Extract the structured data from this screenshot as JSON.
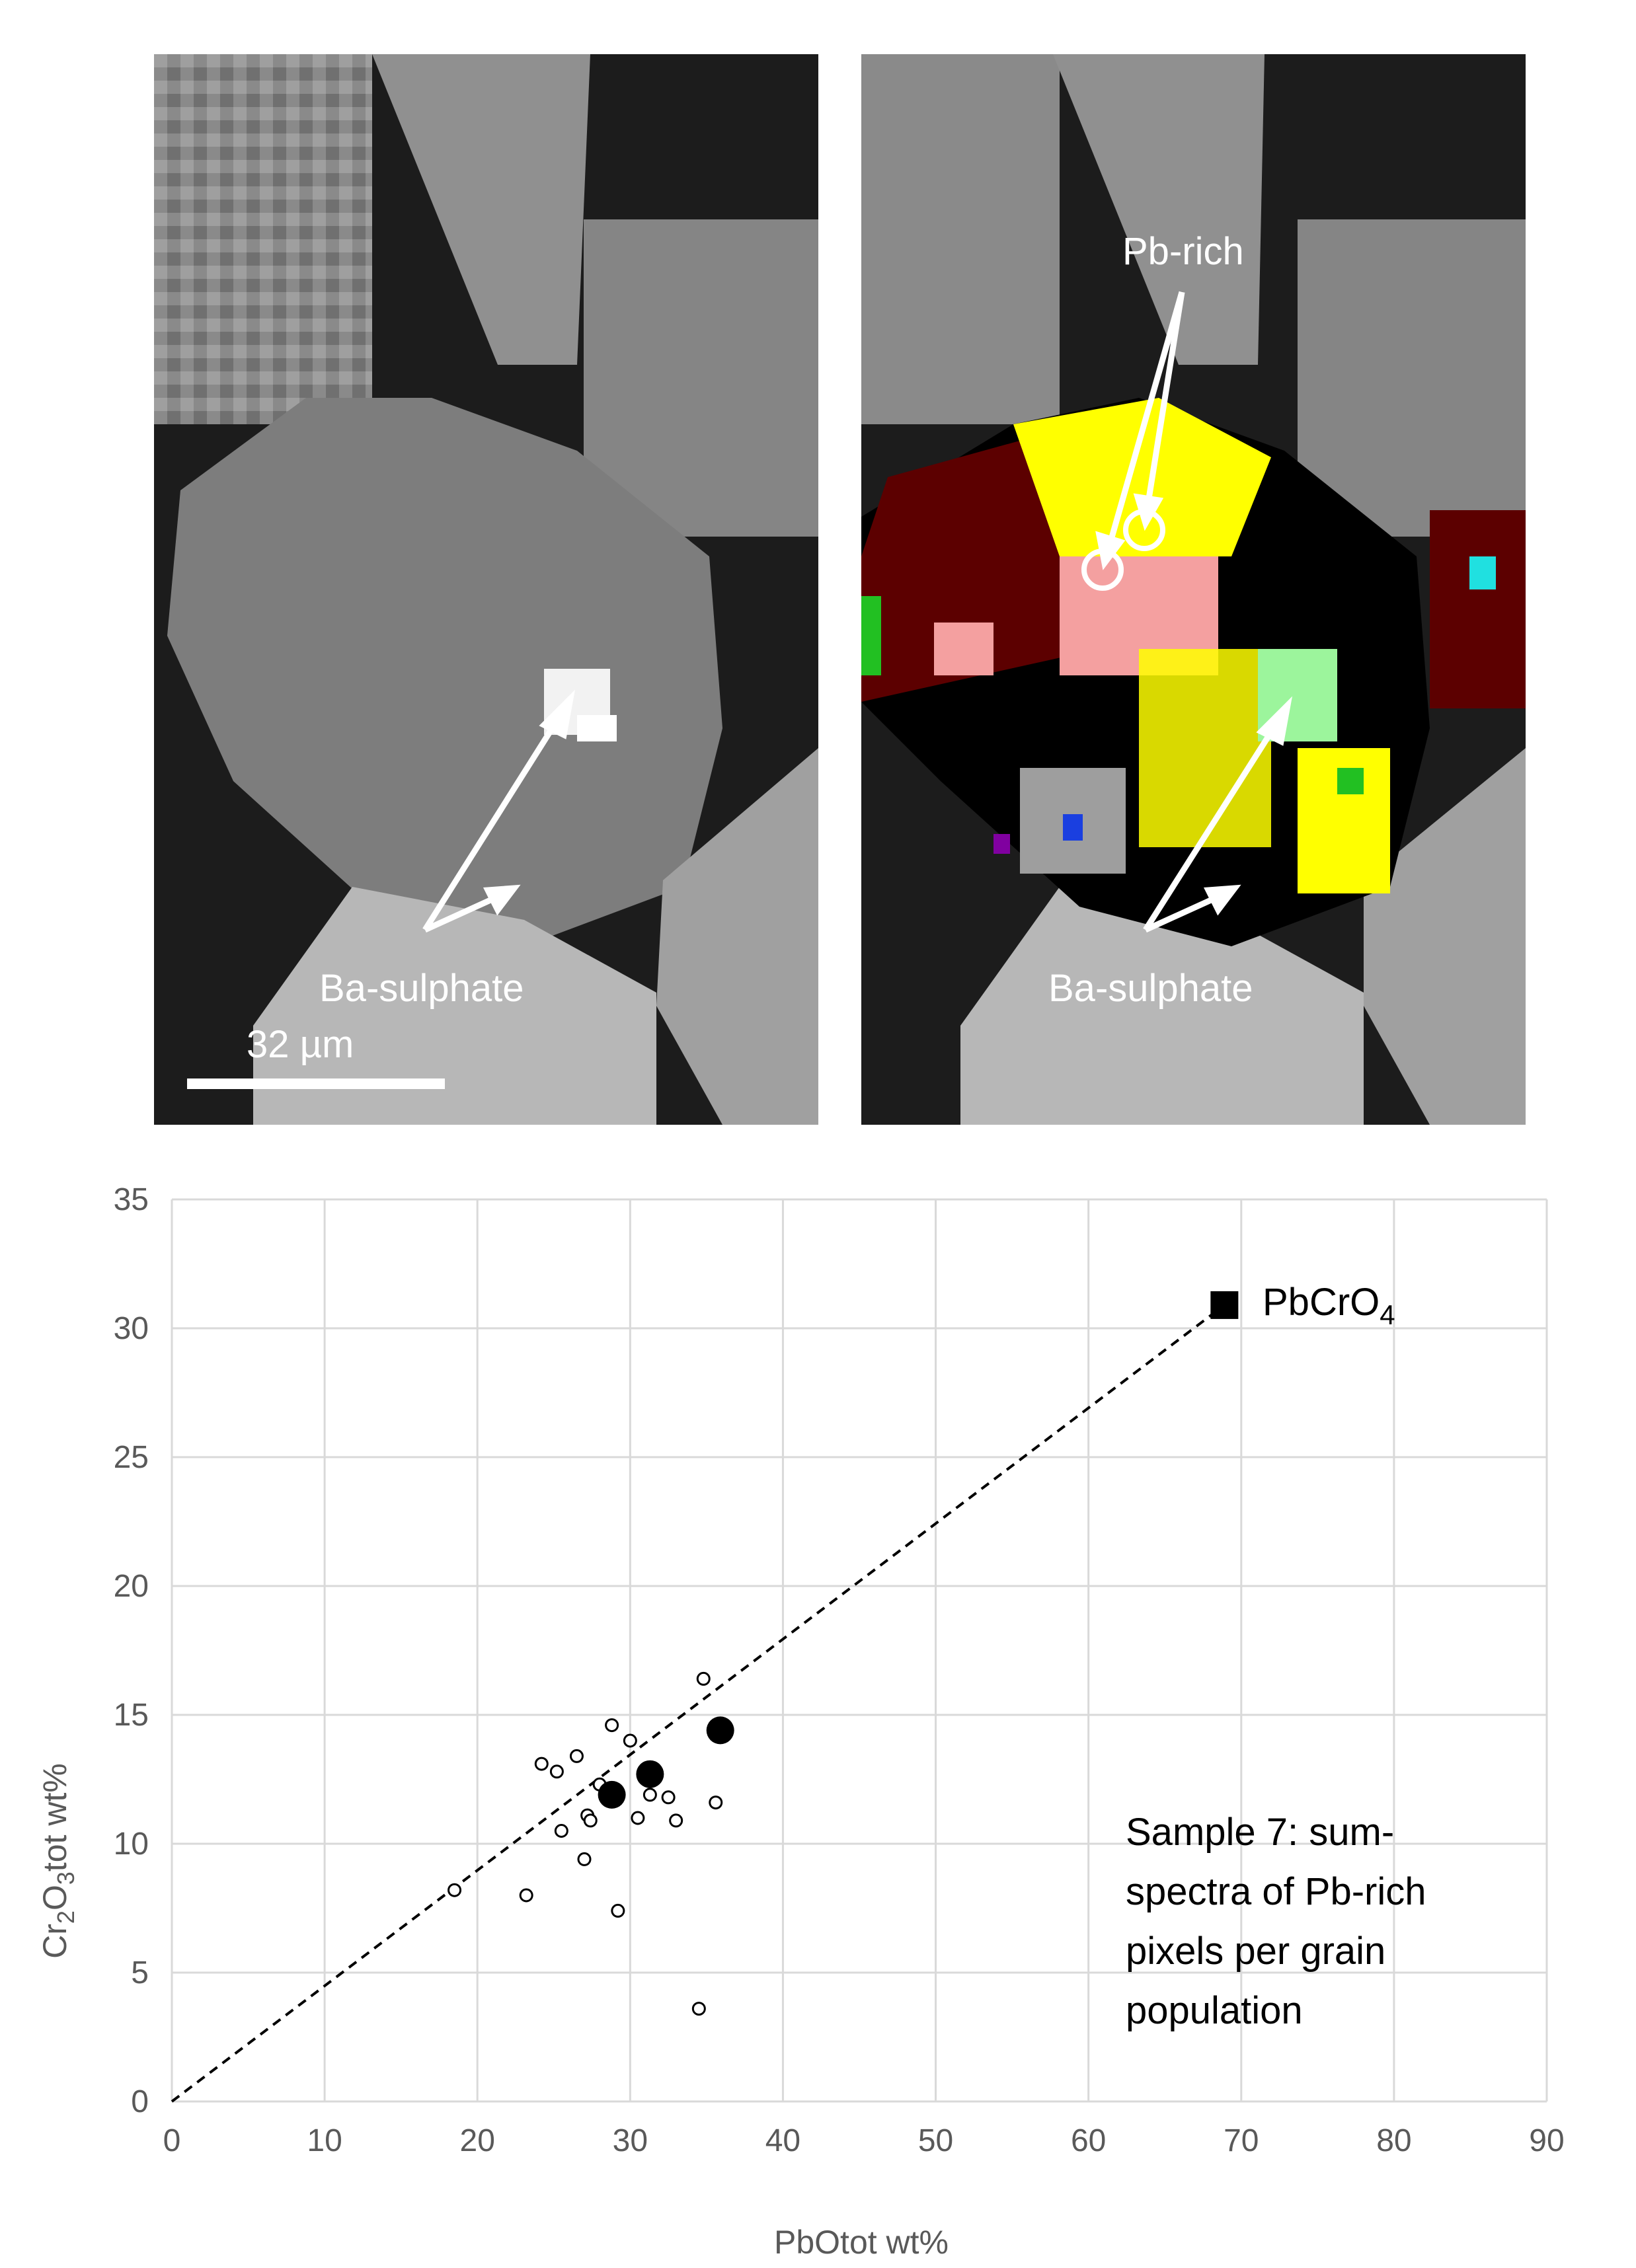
{
  "images": {
    "left": {
      "label_ba_sulphate": "Ba-sulphate",
      "scale_bar_label": "32 µm"
    },
    "right": {
      "label_pb_rich": "Pb-rich",
      "label_ba_sulphate": "Ba-sulphate"
    }
  },
  "chart_data": {
    "type": "scatter",
    "xlabel": "PbOtot wt%",
    "ylabel_parts": [
      "Cr",
      "2",
      "O",
      "3",
      "tot wt%"
    ],
    "xlim": [
      0,
      90
    ],
    "ylim": [
      0,
      35
    ],
    "xticks": [
      0,
      10,
      20,
      30,
      40,
      50,
      60,
      70,
      80,
      90
    ],
    "yticks": [
      0,
      5,
      10,
      15,
      20,
      25,
      30,
      35
    ],
    "grid": true,
    "series": [
      {
        "marker": "small-open-circle",
        "points": [
          [
            18.5,
            8.2
          ],
          [
            23.2,
            8.0
          ],
          [
            24.2,
            13.1
          ],
          [
            25.2,
            12.8
          ],
          [
            25.5,
            10.5
          ],
          [
            26.5,
            13.4
          ],
          [
            27.0,
            9.4
          ],
          [
            27.2,
            11.1
          ],
          [
            27.4,
            10.9
          ],
          [
            28.0,
            12.3
          ],
          [
            28.5,
            12.0
          ],
          [
            28.8,
            14.6
          ],
          [
            29.2,
            7.4
          ],
          [
            30.0,
            14.0
          ],
          [
            30.5,
            11.0
          ],
          [
            31.3,
            11.9
          ],
          [
            32.5,
            11.8
          ],
          [
            33.0,
            10.9
          ],
          [
            34.5,
            3.6
          ],
          [
            34.8,
            16.4
          ],
          [
            35.6,
            11.6
          ]
        ]
      },
      {
        "marker": "large-filled-circle",
        "points": [
          [
            28.8,
            11.9
          ],
          [
            31.3,
            12.7
          ],
          [
            35.9,
            14.4
          ]
        ]
      },
      {
        "marker": "filled-square",
        "label_parts": [
          "PbCrO",
          "4"
        ],
        "points": [
          [
            68.9,
            30.9
          ]
        ]
      }
    ],
    "reference_line": {
      "style": "dashed",
      "from": [
        0,
        0
      ],
      "to": [
        68.9,
        30.9
      ]
    },
    "annotation_lines": [
      "Sample 7: sum-",
      "spectra of Pb-rich",
      "pixels per grain",
      "population"
    ]
  }
}
